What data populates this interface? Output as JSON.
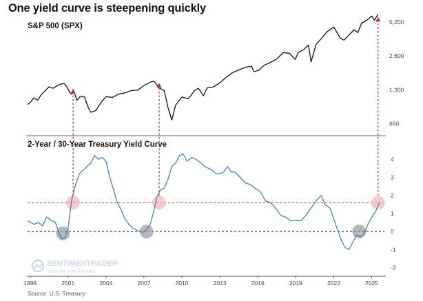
{
  "chart_data": {
    "title": "One yield curve is steepening quickly",
    "source": "Source: U.S. Treasury",
    "watermark": {
      "name": "SENTIMENTRADER",
      "tagline": "Analysis over Emotion"
    },
    "x_ticks": [
      "1998",
      "2001",
      "2004",
      "2007",
      "2010",
      "2013",
      "2016",
      "2019",
      "2022",
      "2025"
    ],
    "colors": {
      "spx": "#111111",
      "curve": "#4a7fc0",
      "arrow": "#b23a3a",
      "pink": "#f2b8bd",
      "gray": "#9a9a9a"
    },
    "panels": [
      {
        "type": "line",
        "title": "S&P 500 (SPX)",
        "scale": "log",
        "y_ticks": [
          "5,200",
          "2,600",
          "1,300",
          "650"
        ],
        "ylim": [
          560,
          6000
        ],
        "series": [
          {
            "name": "S&P 500 (SPX)",
            "x": [
              1997.8,
              1998.0,
              1998.3,
              1998.6,
              1998.9,
              1999.2,
              1999.5,
              1999.8,
              2000.1,
              2000.4,
              2000.7,
              2000.9,
              2001.2,
              2001.5,
              2001.7,
              2002.0,
              2002.3,
              2002.6,
              2002.8,
              2003.2,
              2003.6,
              2004.0,
              2004.5,
              2005.0,
              2005.5,
              2006.0,
              2006.5,
              2007.0,
              2007.5,
              2007.8,
              2008.2,
              2008.6,
              2008.9,
              2009.2,
              2009.5,
              2010.0,
              2010.5,
              2011.0,
              2011.3,
              2011.7,
              2012.0,
              2012.5,
              2013.0,
              2013.5,
              2014.0,
              2014.5,
              2015.0,
              2015.5,
              2015.7,
              2016.1,
              2016.5,
              2017.0,
              2017.5,
              2018.0,
              2018.5,
              2018.95,
              2019.2,
              2019.6,
              2020.0,
              2020.2,
              2020.6,
              2021.0,
              2021.5,
              2022.0,
              2022.5,
              2022.8,
              2023.2,
              2023.6,
              2023.9,
              2024.2,
              2024.6,
              2025.0,
              2025.2,
              2025.5
            ],
            "values": [
              960,
              1000,
              1100,
              1050,
              1180,
              1280,
              1380,
              1340,
              1400,
              1460,
              1480,
              1380,
              1200,
              1220,
              1050,
              1140,
              1120,
              900,
              820,
              850,
              1000,
              1130,
              1110,
              1190,
              1220,
              1280,
              1290,
              1420,
              1520,
              1550,
              1350,
              1280,
              900,
              700,
              950,
              1120,
              1080,
              1280,
              1340,
              1150,
              1350,
              1380,
              1500,
              1680,
              1850,
              1950,
              2060,
              2100,
              1880,
              1950,
              2150,
              2280,
              2450,
              2780,
              2750,
              2420,
              2800,
              2950,
              3250,
              2300,
              3300,
              3700,
              4300,
              4700,
              3750,
              3600,
              4000,
              4450,
              4200,
              5100,
              5400,
              5900,
              5400,
              6100
            ]
          }
        ]
      },
      {
        "type": "line",
        "title": "2-Year / 30-Year Treasury Yield Curve",
        "y_ticks": [
          4,
          3,
          2,
          1,
          0,
          -1,
          -2
        ],
        "ylim": [
          -2.4,
          4.7
        ],
        "ref_lines": [
          1.6,
          0
        ],
        "series": [
          {
            "name": "2-Year / 30-Year Treasury Yield Curve",
            "x": [
              1997.8,
              1998.3,
              1998.7,
              1999.0,
              1999.3,
              1999.7,
              2000.0,
              2000.3,
              2000.5,
              2000.8,
              2001.0,
              2001.3,
              2001.6,
              2001.9,
              2002.2,
              2002.5,
              2002.8,
              2003.1,
              2003.4,
              2003.7,
              2004.0,
              2004.3,
              2004.6,
              2004.9,
              2005.2,
              2005.5,
              2005.8,
              2006.1,
              2006.5,
              2006.9,
              2007.2,
              2007.5,
              2007.8,
              2008.0,
              2008.3,
              2008.6,
              2008.9,
              2009.2,
              2009.5,
              2009.8,
              2010.1,
              2010.4,
              2010.8,
              2011.1,
              2011.5,
              2011.8,
              2012.1,
              2012.4,
              2012.7,
              2013.0,
              2013.3,
              2013.6,
              2013.9,
              2014.2,
              2014.6,
              2015.0,
              2015.4,
              2015.8,
              2016.2,
              2016.6,
              2017.0,
              2017.4,
              2017.8,
              2018.2,
              2018.6,
              2019.0,
              2019.4,
              2019.8,
              2020.2,
              2020.6,
              2021.0,
              2021.3,
              2021.7,
              2022.0,
              2022.3,
              2022.6,
              2022.9,
              2023.2,
              2023.5,
              2023.8,
              2024.1,
              2024.4,
              2024.7,
              2025.0,
              2025.3,
              2025.6
            ],
            "values": [
              0.6,
              0.4,
              0.5,
              0.3,
              0.8,
              0.6,
              0.5,
              -0.1,
              -0.4,
              -0.3,
              0.2,
              1.8,
              2.6,
              3.2,
              3.4,
              3.6,
              3.8,
              4.2,
              4.0,
              4.1,
              3.9,
              3.0,
              2.3,
              1.6,
              1.2,
              0.7,
              0.4,
              0.2,
              0.05,
              -0.05,
              0.1,
              0.4,
              1.2,
              1.9,
              2.3,
              2.4,
              2.9,
              3.6,
              3.8,
              4.2,
              4.3,
              3.9,
              4.1,
              4.0,
              3.8,
              3.6,
              3.5,
              3.4,
              3.2,
              3.2,
              3.3,
              3.6,
              3.3,
              3.3,
              3.0,
              2.7,
              2.6,
              2.4,
              2.2,
              1.7,
              1.6,
              1.3,
              0.9,
              0.8,
              0.6,
              0.6,
              0.6,
              0.9,
              1.3,
              1.7,
              2.0,
              1.5,
              1.3,
              0.7,
              0.1,
              -0.5,
              -0.9,
              -1.0,
              -0.6,
              -0.2,
              -0.3,
              -0.1,
              0.4,
              0.8,
              1.1,
              1.6
            ]
          }
        ],
        "markers": [
          {
            "x": 2000.6,
            "y": -0.1,
            "kind": "gray"
          },
          {
            "x": 2001.4,
            "y": 1.6,
            "kind": "pink"
          },
          {
            "x": 2007.2,
            "y": 0.0,
            "kind": "gray"
          },
          {
            "x": 2008.2,
            "y": 1.6,
            "kind": "pink"
          },
          {
            "x": 2024.0,
            "y": 0.0,
            "kind": "gray"
          },
          {
            "x": 2025.5,
            "y": 1.6,
            "kind": "pink"
          }
        ],
        "arrows": [
          {
            "x": 2001.4,
            "from": 1.6,
            "to_spx": 1380
          },
          {
            "x": 2008.2,
            "from": 1.6,
            "to_spx": 1550
          },
          {
            "x": 2025.5,
            "from": 1.6,
            "to_spx": 6000
          }
        ]
      }
    ]
  }
}
